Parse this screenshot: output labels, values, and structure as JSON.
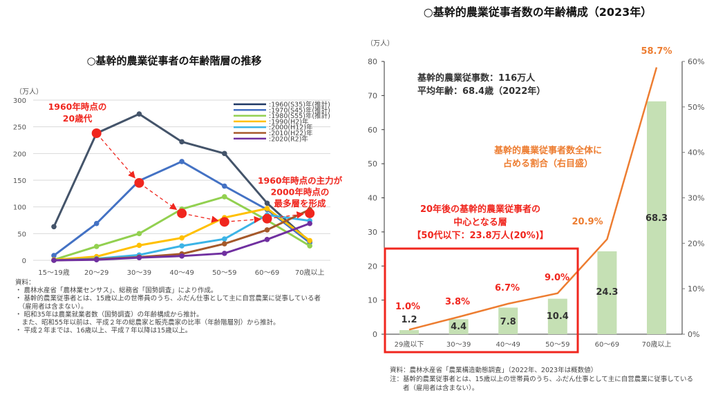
{
  "chart_data": [
    {
      "type": "line",
      "title": "○基幹的農業従事者の年齢階層の推移",
      "ylabel": "（万人）",
      "ylim": [
        0,
        300
      ],
      "yticks": [
        0,
        50,
        100,
        150,
        200,
        250,
        300
      ],
      "grid": true,
      "legend_placement": "top-right",
      "categories": [
        "15～19歳",
        "20～29",
        "30～39",
        "40～49",
        "50～59",
        "60～69",
        "70歳以上"
      ],
      "series": [
        {
          "name": ":1960(S35)年(推計)",
          "color": "#44546a",
          "legend_color": "#1f3864",
          "values": [
            63,
            238,
            274,
            222,
            200,
            107,
            35
          ]
        },
        {
          "name": ":1970(S45)年(推計)",
          "color": "#4472c4",
          "values": [
            9,
            69,
            149,
            185,
            139,
            95,
            33
          ]
        },
        {
          "name": ":1980(S55)年(推計)",
          "color": "#92d050",
          "values": [
            1,
            26,
            50,
            96,
            119,
            75,
            27
          ]
        },
        {
          "name": ":1990(H2)年",
          "color": "#ffc000",
          "values": [
            1,
            7,
            28,
            42,
            80,
            97,
            37
          ]
        },
        {
          "name": ":2000(H12)年",
          "color": "#3cb4e6",
          "values": [
            0,
            3,
            10,
            27,
            40,
            85,
            74
          ]
        },
        {
          "name": ":2010(H22)年",
          "color": "#a5592a",
          "values": [
            0,
            2,
            6,
            12,
            31,
            57,
            95
          ]
        },
        {
          "name": ":2020(R2)年",
          "color": "#7030a0",
          "values": [
            0,
            1,
            5,
            8,
            13,
            39,
            69
          ]
        }
      ],
      "highlight_cohort": {
        "color": "#f0261e",
        "values": [
          null,
          238,
          145,
          88,
          72,
          78,
          88
        ]
      },
      "annotations": [
        {
          "lines": [
            "1960年時点の",
            "20歳代"
          ]
        },
        {
          "lines": [
            "1960年時点の主力が",
            "2000年時点の",
            "最多層を形成"
          ]
        }
      ],
      "notes": [
        "資料：",
        "・ 農林水産省「農林業センサス」、総務省「国勢調査」により作成。",
        "・ 基幹的農業従事者とは、15歳以上の世帯員のうち、ふだん仕事として主に自営農業に従事している者",
        "　（雇用者は含まない）。",
        "・ 昭和35年は農業就業者数（国勢調査）の年齢構成から推計。",
        "　また、昭和55年以前は、平成２年の総農家と販売農家の比率（年齢階層別）から推計。",
        "・ 平成２年までは、16歳以上、平成７年以降は15歳以上。"
      ]
    },
    {
      "type": "bar+line",
      "title": "○基幹的農業従事者数の年齢構成（2023年）",
      "ylabel": "（万人）",
      "ylim": [
        0,
        80
      ],
      "yticks": [
        0,
        10,
        20,
        30,
        40,
        50,
        60,
        70,
        80
      ],
      "y2lim": [
        0,
        60
      ],
      "y2ticks": [
        "0%",
        "10%",
        "20%",
        "30%",
        "40%",
        "50%",
        "60%"
      ],
      "categories": [
        "29歳以下",
        "30～39",
        "40～49",
        "50～59",
        "60～69",
        "70歳以上"
      ],
      "bar_color": "#c5e0b4",
      "line_color": "#ed7d31",
      "bar_values": [
        1.2,
        4.4,
        7.8,
        10.4,
        24.3,
        68.3
      ],
      "bar_labels": [
        "1.2",
        "4.4",
        "7.8",
        "10.4",
        "24.3",
        "68.3"
      ],
      "share_values": [
        1.0,
        3.8,
        6.7,
        9.0,
        20.9,
        58.7
      ],
      "share_labels": [
        "1.0%",
        "3.8%",
        "6.7%",
        "9.0%",
        "20.9%",
        "58.7%"
      ],
      "info": [
        "基幹的農業従事数：116万人",
        "平均年齢：68.4歳（2022年）"
      ],
      "line_annotation": [
        "基幹的農業従事者数全体に",
        "占める割合（右目盛）"
      ],
      "box_annotation": [
        "20年後の基幹的農業従事者の",
        "中心となる層",
        "【50代以下：23.8万人(20%)】"
      ],
      "notes": [
        "資料：農林水産省「農業構造動態調査」（2022年、2023年は概数値）",
        "注：基幹的農業従事者とは、15歳以上の世帯員のうち、ふだん仕事として主に自営農業に従事している",
        "　　者（雇用者は含まない）。"
      ]
    }
  ]
}
